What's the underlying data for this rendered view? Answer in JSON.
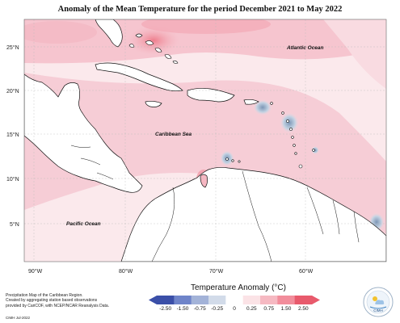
{
  "title": "Anomaly of the Mean Temperature for the period December 2021 to May 2022",
  "map": {
    "labels": {
      "atlantic": "Atlantic Ocean",
      "caribbean": "Caribbean Sea",
      "pacific": "Pacific Ocean"
    },
    "lat_ticks": [
      "25°N",
      "20°N",
      "15°N",
      "10°N",
      "5°N"
    ],
    "lon_ticks": [
      "90°W",
      "80°W",
      "70°W",
      "60°W"
    ],
    "colors": {
      "ocean_base": "#fbe6ea",
      "anomaly_light": "#f7d0d8",
      "anomaly_mid": "#f2a6b3",
      "anomaly_strong": "#ee7d8c",
      "cool_light": "#c9d8e6",
      "cool_mid": "#8fa7c2",
      "land": "#ffffff",
      "coast": "#111111"
    }
  },
  "legend": {
    "title": "Temperature Anomaly (°C)",
    "ticks": [
      "-2.50",
      "-1.50",
      "-0.75",
      "-0.25",
      "0",
      "0.25",
      "0.75",
      "1.50",
      "2.50"
    ],
    "colors": [
      "#3b4fa8",
      "#6f84c9",
      "#a3b3d8",
      "#d2dbe9",
      "#ffffff",
      "#fbe3e6",
      "#f6b9c2",
      "#f28d9b",
      "#e85a6c"
    ]
  },
  "credits": {
    "lines": [
      "Precipitation Map of the Caribbean Region.",
      "Created by aggregating station based observations",
      "provided by CariCOF, with NCEP/NCAR Reanalysis Data."
    ],
    "footnote": "CIMH Jul-2022"
  },
  "logo_text": "CIMH"
}
